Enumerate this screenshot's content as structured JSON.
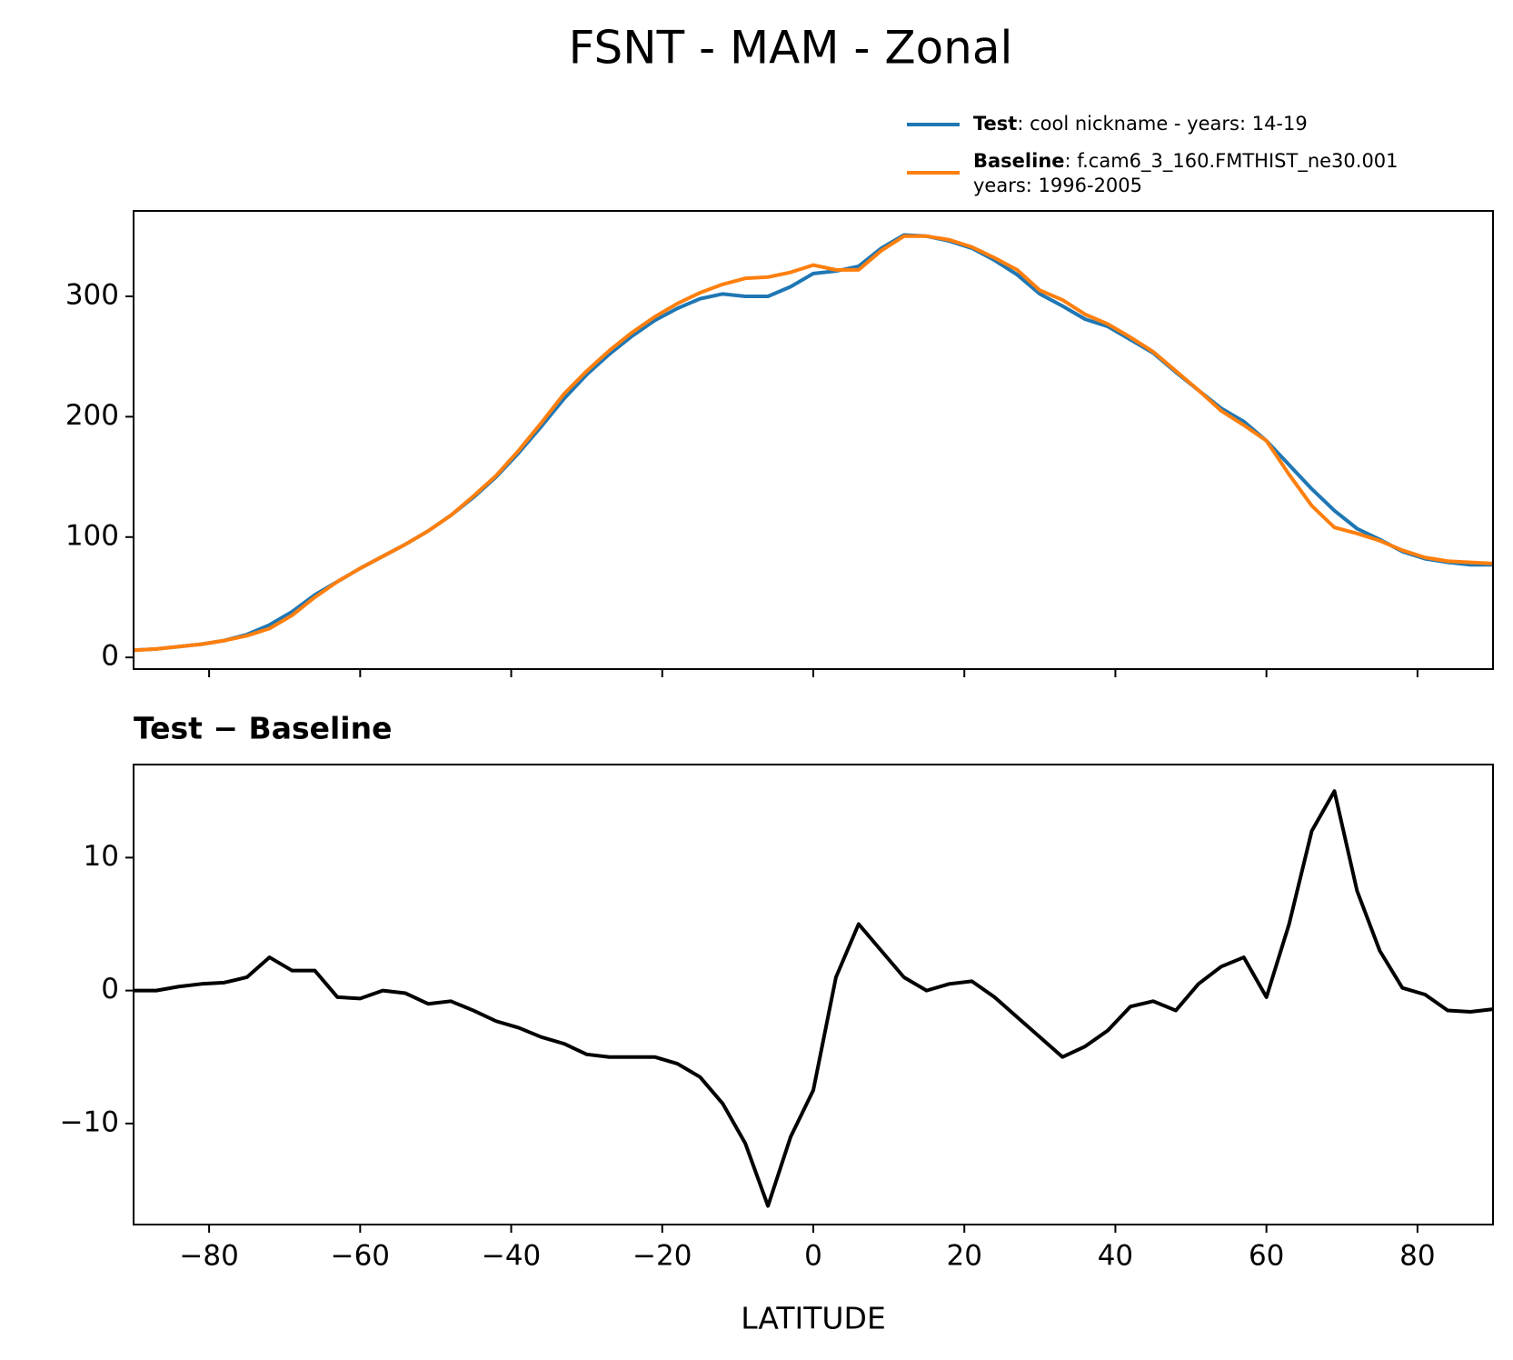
{
  "chart_data": [
    {
      "type": "line",
      "title": "FSNT - MAM - Zonal",
      "x": [
        -90,
        -87,
        -84,
        -81,
        -78,
        -75,
        -72,
        -69,
        -66,
        -63,
        -60,
        -57,
        -54,
        -51,
        -48,
        -45,
        -42,
        -39,
        -36,
        -33,
        -30,
        -27,
        -24,
        -21,
        -18,
        -15,
        -12,
        -9,
        -6,
        -3,
        0,
        3,
        6,
        9,
        12,
        15,
        18,
        21,
        24,
        27,
        30,
        33,
        36,
        39,
        42,
        45,
        48,
        51,
        54,
        57,
        60,
        63,
        66,
        69,
        72,
        75,
        78,
        81,
        84,
        87,
        90
      ],
      "series": [
        {
          "name": "Test",
          "description": [
            ": cool nickname - years: 14-19"
          ],
          "color": "#1f77b4",
          "values": [
            6,
            7,
            9,
            11,
            14,
            19,
            27,
            38,
            52,
            63,
            74,
            84,
            94,
            105,
            118,
            133,
            150,
            170,
            192,
            215,
            235,
            252,
            267,
            280,
            290,
            298,
            302,
            300,
            300,
            308,
            319,
            321,
            325,
            340,
            351,
            350,
            346,
            340,
            330,
            318,
            302,
            292,
            281,
            275,
            264,
            253,
            237,
            222,
            207,
            196,
            180,
            160,
            140,
            122,
            107,
            98,
            88,
            82,
            79,
            77,
            77
          ]
        },
        {
          "name": "Baseline",
          "description": [
            ": f.cam6_3_160.FMTHIST_ne30.001",
            "years: 1996-2005"
          ],
          "color": "#ff7f0e",
          "values": [
            6,
            7,
            9,
            11,
            14,
            18,
            24,
            35,
            50,
            63,
            74,
            84,
            94,
            105,
            118,
            134,
            151,
            172,
            195,
            219,
            238,
            255,
            270,
            283,
            294,
            303,
            310,
            315,
            316,
            320,
            326,
            322,
            322,
            338,
            350,
            350,
            347,
            341,
            332,
            322,
            305,
            297,
            285,
            277,
            266,
            254,
            238,
            222,
            205,
            193,
            180,
            152,
            126,
            108,
            103,
            97,
            89,
            83,
            80,
            79,
            78
          ]
        }
      ],
      "xlim": [
        -90,
        90
      ],
      "xticks": [
        -80,
        -60,
        -40,
        -20,
        0,
        20,
        40,
        60,
        80
      ],
      "ylim": [
        -9.7,
        371
      ],
      "yticks": [
        0,
        100,
        200,
        300
      ]
    },
    {
      "type": "line",
      "title": "Test − Baseline",
      "xlabel": "LATITUDE",
      "x": [
        -90,
        -87,
        -84,
        -81,
        -78,
        -75,
        -72,
        -69,
        -66,
        -63,
        -60,
        -57,
        -54,
        -51,
        -48,
        -45,
        -42,
        -39,
        -36,
        -33,
        -30,
        -27,
        -24,
        -21,
        -18,
        -15,
        -12,
        -9,
        -6,
        -3,
        0,
        3,
        6,
        9,
        12,
        15,
        18,
        21,
        24,
        27,
        30,
        33,
        36,
        39,
        42,
        45,
        48,
        51,
        54,
        57,
        60,
        63,
        66,
        69,
        72,
        75,
        78,
        81,
        84,
        87,
        90
      ],
      "series": [
        {
          "color": "#000000",
          "values": [
            0,
            0,
            0.3,
            0.5,
            0.6,
            1.0,
            2.5,
            1.5,
            1.5,
            -0.5,
            -0.6,
            0,
            -0.2,
            -1.0,
            -0.8,
            -1.5,
            -2.3,
            -2.8,
            -3.5,
            -4.0,
            -4.8,
            -5.0,
            -5.0,
            -5.0,
            -5.5,
            -6.5,
            -8.5,
            -11.5,
            -16.2,
            -11,
            -7.5,
            1,
            5,
            3,
            1,
            0,
            0.5,
            0.7,
            -0.5,
            -2,
            -3.5,
            -5,
            -4.2,
            -3,
            -1.2,
            -0.8,
            -1.5,
            0.5,
            1.8,
            2.5,
            -0.5,
            5,
            12,
            15,
            7.5,
            3,
            0.2,
            -0.3,
            -1.5,
            -1.6,
            -1.4
          ]
        }
      ],
      "xlim": [
        -90,
        90
      ],
      "xticks": [
        {
          "value": -80,
          "label": "−80"
        },
        {
          "value": -60,
          "label": "−60"
        },
        {
          "value": -40,
          "label": "−40"
        },
        {
          "value": -20,
          "label": "−20"
        },
        0,
        20,
        40,
        60,
        80
      ],
      "ylim": [
        -17.6,
        17.0
      ],
      "yticks": [
        {
          "value": -10,
          "label": "−10"
        },
        0,
        10
      ]
    }
  ]
}
